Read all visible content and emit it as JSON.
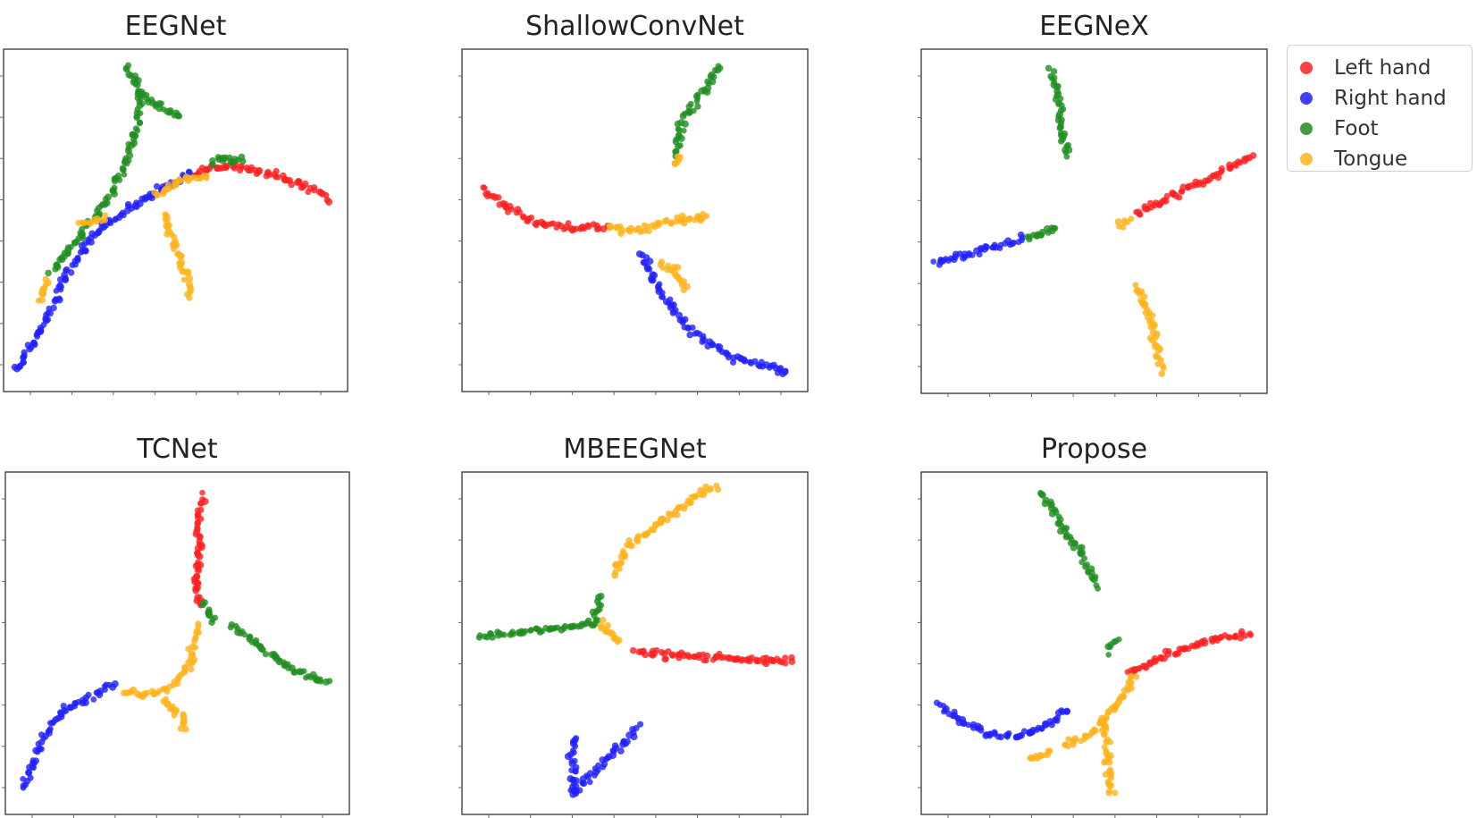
{
  "classes": [
    {
      "name": "Left hand",
      "color": "#ff2020"
    },
    {
      "name": "Right hand",
      "color": "#2020ff"
    },
    {
      "name": "Foot",
      "color": "#1f8f1f"
    },
    {
      "name": "Tongue",
      "color": "#ffb31a"
    }
  ],
  "chart_data": [
    {
      "type": "scatter",
      "title": "EEGNet",
      "xlim": [
        0,
        1
      ],
      "ylim": [
        0,
        1
      ],
      "grid": false,
      "series": [
        {
          "name": "Left hand",
          "paths": [
            [
              [
                0.55,
                0.64
              ],
              [
                0.66,
                0.66
              ],
              [
                0.77,
                0.64
              ],
              [
                0.88,
                0.6
              ],
              [
                0.95,
                0.56
              ]
            ]
          ]
        },
        {
          "name": "Right hand",
          "paths": [
            [
              [
                0.04,
                0.06
              ],
              [
                0.1,
                0.17
              ],
              [
                0.18,
                0.33
              ],
              [
                0.26,
                0.46
              ],
              [
                0.36,
                0.53
              ],
              [
                0.46,
                0.59
              ],
              [
                0.55,
                0.64
              ]
            ]
          ]
        },
        {
          "name": "Foot",
          "paths": [
            [
              [
                0.36,
                0.95
              ],
              [
                0.4,
                0.87
              ],
              [
                0.46,
                0.83
              ],
              [
                0.52,
                0.8
              ]
            ],
            [
              [
                0.4,
                0.87
              ],
              [
                0.38,
                0.74
              ],
              [
                0.34,
                0.63
              ],
              [
                0.3,
                0.56
              ]
            ],
            [
              [
                0.14,
                0.35
              ],
              [
                0.22,
                0.45
              ],
              [
                0.3,
                0.56
              ]
            ],
            [
              [
                0.6,
                0.67
              ],
              [
                0.7,
                0.68
              ]
            ]
          ]
        },
        {
          "name": "Tongue",
          "paths": [
            [
              [
                0.47,
                0.52
              ],
              [
                0.49,
                0.43
              ],
              [
                0.53,
                0.34
              ],
              [
                0.54,
                0.27
              ]
            ],
            [
              [
                0.44,
                0.57
              ],
              [
                0.51,
                0.62
              ],
              [
                0.6,
                0.63
              ]
            ],
            [
              [
                0.22,
                0.49
              ],
              [
                0.3,
                0.51
              ]
            ],
            [
              [
                0.1,
                0.27
              ],
              [
                0.13,
                0.33
              ]
            ]
          ]
        }
      ]
    },
    {
      "type": "scatter",
      "title": "ShallowConvNet",
      "xlim": [
        0,
        1
      ],
      "ylim": [
        0,
        1
      ],
      "grid": false,
      "series": [
        {
          "name": "Left hand",
          "paths": [
            [
              [
                0.06,
                0.59
              ],
              [
                0.14,
                0.53
              ],
              [
                0.22,
                0.49
              ],
              [
                0.32,
                0.48
              ],
              [
                0.42,
                0.48
              ]
            ]
          ]
        },
        {
          "name": "Right hand",
          "paths": [
            [
              [
                0.52,
                0.4
              ],
              [
                0.58,
                0.28
              ],
              [
                0.66,
                0.18
              ],
              [
                0.78,
                0.1
              ],
              [
                0.9,
                0.07
              ],
              [
                0.95,
                0.05
              ]
            ]
          ]
        },
        {
          "name": "Foot",
          "paths": [
            [
              [
                0.62,
                0.69
              ],
              [
                0.64,
                0.8
              ],
              [
                0.7,
                0.88
              ],
              [
                0.75,
                0.95
              ]
            ]
          ]
        },
        {
          "name": "Tongue",
          "paths": [
            [
              [
                0.42,
                0.48
              ],
              [
                0.5,
                0.47
              ],
              [
                0.58,
                0.49
              ],
              [
                0.7,
                0.51
              ],
              [
                0.7,
                0.51
              ]
            ],
            [
              [
                0.57,
                0.37
              ],
              [
                0.62,
                0.35
              ],
              [
                0.65,
                0.3
              ]
            ],
            [
              [
                0.62,
                0.66
              ],
              [
                0.63,
                0.7
              ]
            ]
          ]
        }
      ]
    },
    {
      "type": "scatter",
      "title": "EEGNeX",
      "xlim": [
        0,
        1
      ],
      "ylim": [
        0,
        1
      ],
      "grid": false,
      "series": [
        {
          "name": "Left hand",
          "paths": [
            [
              [
                0.62,
                0.52
              ],
              [
                0.72,
                0.57
              ],
              [
                0.82,
                0.62
              ],
              [
                0.9,
                0.66
              ],
              [
                0.96,
                0.69
              ]
            ]
          ]
        },
        {
          "name": "Right hand",
          "paths": [
            [
              [
                0.04,
                0.38
              ],
              [
                0.12,
                0.4
              ],
              [
                0.22,
                0.43
              ],
              [
                0.3,
                0.45
              ]
            ]
          ]
        },
        {
          "name": "Foot",
          "paths": [
            [
              [
                0.38,
                0.94
              ],
              [
                0.4,
                0.84
              ],
              [
                0.41,
                0.74
              ],
              [
                0.43,
                0.68
              ]
            ],
            [
              [
                0.3,
                0.45
              ],
              [
                0.4,
                0.48
              ]
            ]
          ]
        },
        {
          "name": "Tongue",
          "paths": [
            [
              [
                0.62,
                0.31
              ],
              [
                0.66,
                0.22
              ],
              [
                0.68,
                0.12
              ],
              [
                0.7,
                0.06
              ]
            ],
            [
              [
                0.57,
                0.48
              ],
              [
                0.61,
                0.51
              ]
            ]
          ]
        }
      ]
    },
    {
      "type": "scatter",
      "title": "TCNet",
      "xlim": [
        0,
        1
      ],
      "ylim": [
        0,
        1
      ],
      "grid": false,
      "series": [
        {
          "name": "Left hand",
          "paths": [
            [
              [
                0.57,
                0.93
              ],
              [
                0.56,
                0.82
              ],
              [
                0.56,
                0.7
              ],
              [
                0.56,
                0.6
              ]
            ]
          ]
        },
        {
          "name": "Right hand",
          "paths": [
            [
              [
                0.05,
                0.08
              ],
              [
                0.11,
                0.22
              ],
              [
                0.18,
                0.31
              ],
              [
                0.26,
                0.35
              ],
              [
                0.32,
                0.38
              ]
            ]
          ]
        },
        {
          "name": "Foot",
          "paths": [
            [
              [
                0.66,
                0.55
              ],
              [
                0.74,
                0.49
              ],
              [
                0.84,
                0.42
              ],
              [
                0.94,
                0.38
              ]
            ],
            [
              [
                0.58,
                0.62
              ],
              [
                0.61,
                0.55
              ]
            ]
          ]
        },
        {
          "name": "Tongue",
          "paths": [
            [
              [
                0.34,
                0.36
              ],
              [
                0.42,
                0.35
              ],
              [
                0.49,
                0.38
              ],
              [
                0.54,
                0.45
              ],
              [
                0.56,
                0.56
              ]
            ],
            [
              [
                0.46,
                0.34
              ],
              [
                0.51,
                0.29
              ],
              [
                0.52,
                0.24
              ]
            ]
          ]
        }
      ]
    },
    {
      "type": "scatter",
      "title": "MBEEGNet",
      "xlim": [
        0,
        1
      ],
      "ylim": [
        0,
        1
      ],
      "grid": false,
      "series": [
        {
          "name": "Left hand",
          "paths": [
            [
              [
                0.5,
                0.48
              ],
              [
                0.62,
                0.46
              ],
              [
                0.74,
                0.46
              ],
              [
                0.86,
                0.45
              ],
              [
                0.96,
                0.45
              ]
            ]
          ]
        },
        {
          "name": "Right hand",
          "paths": [
            [
              [
                0.32,
                0.06
              ],
              [
                0.32,
                0.16
              ],
              [
                0.33,
                0.23
              ]
            ],
            [
              [
                0.32,
                0.06
              ],
              [
                0.4,
                0.14
              ],
              [
                0.48,
                0.22
              ],
              [
                0.51,
                0.26
              ]
            ]
          ]
        },
        {
          "name": "Foot",
          "paths": [
            [
              [
                0.05,
                0.52
              ],
              [
                0.14,
                0.53
              ],
              [
                0.24,
                0.54
              ],
              [
                0.32,
                0.55
              ],
              [
                0.4,
                0.56
              ]
            ],
            [
              [
                0.38,
                0.57
              ],
              [
                0.4,
                0.64
              ]
            ]
          ]
        },
        {
          "name": "Tongue",
          "paths": [
            [
              [
                0.44,
                0.7
              ],
              [
                0.48,
                0.78
              ],
              [
                0.58,
                0.86
              ],
              [
                0.68,
                0.93
              ],
              [
                0.74,
                0.96
              ]
            ],
            [
              [
                0.4,
                0.56
              ],
              [
                0.46,
                0.5
              ]
            ]
          ]
        }
      ]
    },
    {
      "type": "scatter",
      "title": "Propose",
      "xlim": [
        0,
        1
      ],
      "ylim": [
        0,
        1
      ],
      "grid": false,
      "series": [
        {
          "name": "Left hand",
          "paths": [
            [
              [
                0.6,
                0.41
              ],
              [
                0.7,
                0.46
              ],
              [
                0.8,
                0.5
              ],
              [
                0.9,
                0.52
              ],
              [
                0.96,
                0.53
              ]
            ]
          ]
        },
        {
          "name": "Right hand",
          "paths": [
            [
              [
                0.05,
                0.32
              ],
              [
                0.12,
                0.27
              ],
              [
                0.2,
                0.23
              ],
              [
                0.28,
                0.23
              ],
              [
                0.36,
                0.26
              ],
              [
                0.43,
                0.31
              ]
            ]
          ]
        },
        {
          "name": "Foot",
          "paths": [
            [
              [
                0.35,
                0.94
              ],
              [
                0.4,
                0.85
              ],
              [
                0.46,
                0.77
              ],
              [
                0.51,
                0.66
              ]
            ],
            [
              [
                0.54,
                0.48
              ],
              [
                0.57,
                0.52
              ]
            ]
          ]
        },
        {
          "name": "Tongue",
          "paths": [
            [
              [
                0.41,
                0.2
              ],
              [
                0.48,
                0.23
              ],
              [
                0.53,
                0.28
              ],
              [
                0.58,
                0.34
              ],
              [
                0.62,
                0.41
              ]
            ],
            [
              [
                0.53,
                0.28
              ],
              [
                0.54,
                0.15
              ],
              [
                0.55,
                0.05
              ]
            ],
            [
              [
                0.31,
                0.16
              ],
              [
                0.38,
                0.19
              ]
            ]
          ]
        }
      ]
    }
  ]
}
